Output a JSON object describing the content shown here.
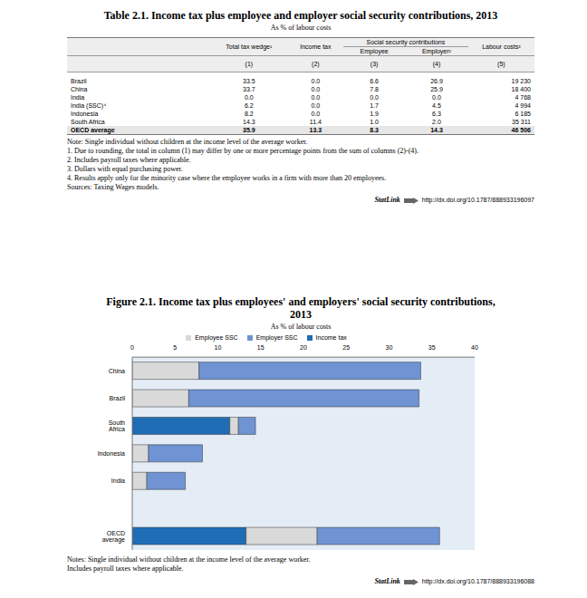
{
  "table": {
    "title": "Table 2.1. Income tax plus employee and employer social security contributions, 2013",
    "subtitle": "As % of labour costs",
    "header": {
      "total": "Total tax wedge¹",
      "income_tax": "Income tax",
      "ssc": "Social security contributions",
      "employee": "Employee",
      "employer": "Employer²",
      "labour_costs": "Labour costs³"
    },
    "column_numbers": [
      "(1)",
      "(2)",
      "(3)",
      "(4)",
      "(5)"
    ],
    "rows": [
      [
        "Brazil",
        "33.5",
        "0.0",
        "6.6",
        "26.9",
        "19 230"
      ],
      [
        "China",
        "33.7",
        "0.0",
        "7.8",
        "25.9",
        "18 400"
      ],
      [
        "India",
        "0.0",
        "0.0",
        "0.0",
        "0.0",
        "4 768"
      ],
      [
        "India (SSC)⁴",
        "6.2",
        "0.0",
        "1.7",
        "4.5",
        "4 994"
      ],
      [
        "Indonesia",
        "8.2",
        "0.0",
        "1.9",
        "6.3",
        "6 185"
      ],
      [
        "South Africa",
        "14.3",
        "11.4",
        "1.0",
        "2.0",
        "35 311"
      ],
      [
        "OECD average",
        "35.9",
        "13.3",
        "8.3",
        "14.3",
        "46 506"
      ]
    ],
    "notes": [
      "Note: Single individual without children at the income level of the average worker.",
      "1. Due to rounding, the total in column (1) may differ by one or more percentage points from the sum of columns (2)-(4).",
      "2. Includes payroll taxes where applicable.",
      "3. Dollars with equal purchasing power.",
      "4. Results apply only for the minority case where the employee works in a firm with more than 20 employees.",
      "Sources: Taxing Wages models."
    ],
    "statlink": {
      "label": "StatLink",
      "url": "http://dx.doi.org/10.1787/888933196097"
    }
  },
  "figure": {
    "title": "Figure 2.1. Income tax plus employees' and employers' social security contributions, 2013",
    "subtitle": "As % of labour costs",
    "notes": [
      "Notes: Single individual without children at the income level of the average worker.",
      "Includes payroll taxes where applicable."
    ],
    "statlink": {
      "label": "StatLink",
      "url": "http://dx.doi.org/10.1787/888933196088"
    }
  },
  "chart_data": {
    "type": "bar",
    "orientation": "horizontal",
    "stacked": true,
    "categories": [
      "China",
      "Brazil",
      "South Africa",
      "Indonesia",
      "India",
      null,
      "OECD average"
    ],
    "series": [
      {
        "name": "Income tax",
        "color": "#1f6db5",
        "values": [
          0.0,
          0.0,
          11.4,
          0.0,
          0.0,
          null,
          13.3
        ]
      },
      {
        "name": "Employee SSC",
        "color": "#d9d9d9",
        "values": [
          7.8,
          6.6,
          1.0,
          1.9,
          1.7,
          null,
          8.3
        ]
      },
      {
        "name": "Employer SSC",
        "color": "#6f93d3",
        "values": [
          25.9,
          26.9,
          2.0,
          6.3,
          4.5,
          null,
          14.3
        ]
      }
    ],
    "xlim": [
      0,
      40
    ],
    "xticks": [
      0,
      5,
      10,
      15,
      20,
      25,
      30,
      35,
      40
    ],
    "grid": false,
    "legend": "top"
  }
}
